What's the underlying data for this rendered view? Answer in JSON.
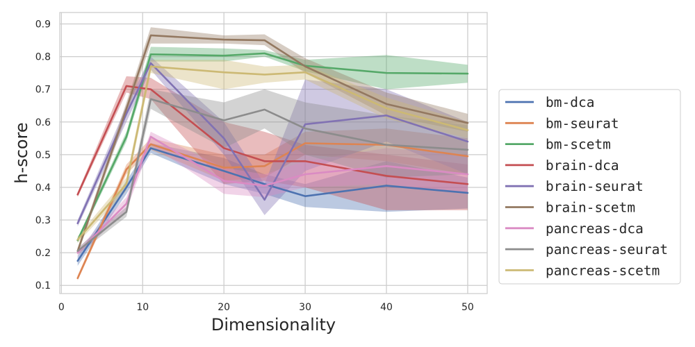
{
  "chart_data": {
    "type": "line",
    "xlabel": "Dimensionality",
    "ylabel": "h-score",
    "xlim": [
      -0.2,
      52.4
    ],
    "ylim": [
      0.075,
      0.935
    ],
    "xticks": [
      0,
      10,
      20,
      30,
      40,
      50
    ],
    "yticks": [
      0.1,
      0.2,
      0.3,
      0.4,
      0.5,
      0.6,
      0.7,
      0.8,
      0.9
    ],
    "grid": true,
    "legend_position": "right",
    "x": [
      2,
      8,
      11,
      20,
      25,
      30,
      40,
      50
    ],
    "series": [
      {
        "name": "bm-dca",
        "color": "#4c72b0",
        "values": [
          0.175,
          0.4,
          0.52,
          0.45,
          0.41,
          0.373,
          0.405,
          0.383
        ],
        "lower": [
          0.16,
          0.38,
          0.505,
          0.41,
          0.38,
          0.34,
          0.325,
          0.335
        ],
        "upper": [
          0.19,
          0.42,
          0.535,
          0.49,
          0.44,
          0.41,
          0.48,
          0.43
        ]
      },
      {
        "name": "bm-seurat",
        "color": "#dd8452",
        "values": [
          0.122,
          0.455,
          0.532,
          0.46,
          0.465,
          0.535,
          0.53,
          0.495
        ],
        "lower": [
          0.115,
          0.44,
          0.515,
          0.42,
          0.43,
          0.5,
          0.48,
          0.44
        ],
        "upper": [
          0.13,
          0.47,
          0.55,
          0.5,
          0.5,
          0.57,
          0.58,
          0.55
        ]
      },
      {
        "name": "bm-scetm",
        "color": "#55a868",
        "values": [
          0.238,
          0.555,
          0.807,
          0.803,
          0.81,
          0.772,
          0.75,
          0.748
        ],
        "lower": [
          0.23,
          0.54,
          0.785,
          0.785,
          0.8,
          0.755,
          0.7,
          0.72
        ],
        "upper": [
          0.245,
          0.57,
          0.83,
          0.825,
          0.82,
          0.79,
          0.805,
          0.775
        ]
      },
      {
        "name": "brain-dca",
        "color": "#c44e52",
        "values": [
          0.378,
          0.71,
          0.7,
          0.52,
          0.48,
          0.48,
          0.435,
          0.41
        ],
        "lower": [
          0.37,
          0.69,
          0.67,
          0.41,
          0.42,
          0.4,
          0.33,
          0.33
        ],
        "upper": [
          0.385,
          0.74,
          0.735,
          0.6,
          0.57,
          0.53,
          0.5,
          0.47
        ]
      },
      {
        "name": "brain-seurat",
        "color": "#8172b3",
        "values": [
          0.29,
          0.625,
          0.78,
          0.55,
          0.362,
          0.593,
          0.62,
          0.54
        ],
        "lower": [
          0.28,
          0.6,
          0.76,
          0.5,
          0.315,
          0.45,
          0.54,
          0.44
        ],
        "upper": [
          0.3,
          0.65,
          0.8,
          0.6,
          0.41,
          0.73,
          0.7,
          0.6
        ]
      },
      {
        "name": "brain-scetm",
        "color": "#937860",
        "values": [
          0.205,
          0.64,
          0.865,
          0.852,
          0.85,
          0.77,
          0.655,
          0.597
        ],
        "lower": [
          0.195,
          0.62,
          0.84,
          0.84,
          0.835,
          0.75,
          0.62,
          0.57
        ],
        "upper": [
          0.215,
          0.66,
          0.89,
          0.865,
          0.868,
          0.795,
          0.69,
          0.625
        ]
      },
      {
        "name": "pancreas-dca",
        "color": "#da8bc3",
        "values": [
          0.2,
          0.35,
          0.555,
          0.42,
          0.405,
          0.44,
          0.465,
          0.44
        ],
        "lower": [
          0.19,
          0.33,
          0.53,
          0.38,
          0.37,
          0.4,
          0.41,
          0.38
        ],
        "upper": [
          0.21,
          0.37,
          0.57,
          0.46,
          0.44,
          0.48,
          0.52,
          0.5
        ]
      },
      {
        "name": "pancreas-seurat",
        "color": "#8c8c8c",
        "values": [
          0.205,
          0.325,
          0.67,
          0.605,
          0.638,
          0.58,
          0.53,
          0.515
        ],
        "lower": [
          0.195,
          0.31,
          0.64,
          0.52,
          0.58,
          0.5,
          0.43,
          0.44
        ],
        "upper": [
          0.215,
          0.34,
          0.7,
          0.66,
          0.7,
          0.66,
          0.62,
          0.59
        ]
      },
      {
        "name": "pancreas-scetm",
        "color": "#ccb974",
        "values": [
          0.24,
          0.41,
          0.77,
          0.752,
          0.745,
          0.752,
          0.642,
          0.575
        ],
        "lower": [
          0.23,
          0.39,
          0.75,
          0.7,
          0.72,
          0.73,
          0.61,
          0.55
        ],
        "upper": [
          0.25,
          0.43,
          0.79,
          0.79,
          0.77,
          0.775,
          0.675,
          0.6
        ]
      }
    ]
  }
}
